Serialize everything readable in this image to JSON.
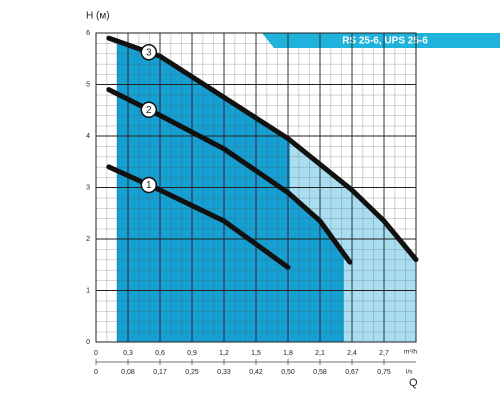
{
  "chart_data": {
    "type": "line",
    "title": "RS 25-6, UPS 25-6",
    "ylabel": "H (м)",
    "xunit": "m³/h",
    "x2unit": "l/s",
    "xlabel": "Q",
    "xlim": [
      0,
      3.0
    ],
    "ylim": [
      0,
      6
    ],
    "x2lim": [
      0,
      0.8333
    ],
    "xticks": [
      0,
      {
        "value": 0.3,
        "label": "0,3"
      },
      {
        "value": 0.6,
        "label": "0,6"
      },
      {
        "value": 0.9,
        "label": "0,9"
      },
      {
        "value": 1.2,
        "label": "1,2"
      },
      {
        "value": 1.5,
        "label": "1,5"
      },
      {
        "value": 1.8,
        "label": "1,8"
      },
      {
        "value": 2.1,
        "label": "2,1"
      },
      {
        "value": 2.4,
        "label": "2,4"
      },
      {
        "value": 2.7,
        "label": "2,7"
      }
    ],
    "x2ticks": [
      0,
      {
        "value": 0.0833,
        "label": "0,08"
      },
      {
        "value": 0.1667,
        "label": "0,17"
      },
      {
        "value": 0.25,
        "label": "0,25"
      },
      {
        "value": 0.3333,
        "label": "0,33"
      },
      {
        "value": 0.4167,
        "label": "0,42"
      },
      {
        "value": 0.5,
        "label": "0,50"
      },
      {
        "value": 0.5833,
        "label": "0,58"
      },
      {
        "value": 0.6667,
        "label": "0,67"
      },
      {
        "value": 0.75,
        "label": "0,75"
      }
    ],
    "yticks": [
      0,
      1,
      2,
      3,
      4,
      5,
      6
    ],
    "grid": true,
    "series": [
      {
        "name": "1",
        "color": "#111111",
        "x": [
          0.12,
          0.6,
          1.2,
          1.8
        ],
        "values": [
          3.4,
          2.95,
          2.35,
          1.45
        ]
      },
      {
        "name": "2",
        "color": "#111111",
        "x": [
          0.12,
          0.6,
          1.2,
          1.8,
          2.1,
          2.38
        ],
        "values": [
          4.9,
          4.4,
          3.75,
          2.9,
          2.35,
          1.55
        ]
      },
      {
        "name": "3",
        "color": "#111111",
        "x": [
          0.12,
          0.6,
          1.2,
          1.8,
          2.1,
          2.4,
          2.7,
          3.0
        ],
        "values": [
          5.9,
          5.55,
          4.75,
          3.95,
          3.45,
          2.95,
          2.35,
          1.6
        ]
      }
    ]
  }
}
